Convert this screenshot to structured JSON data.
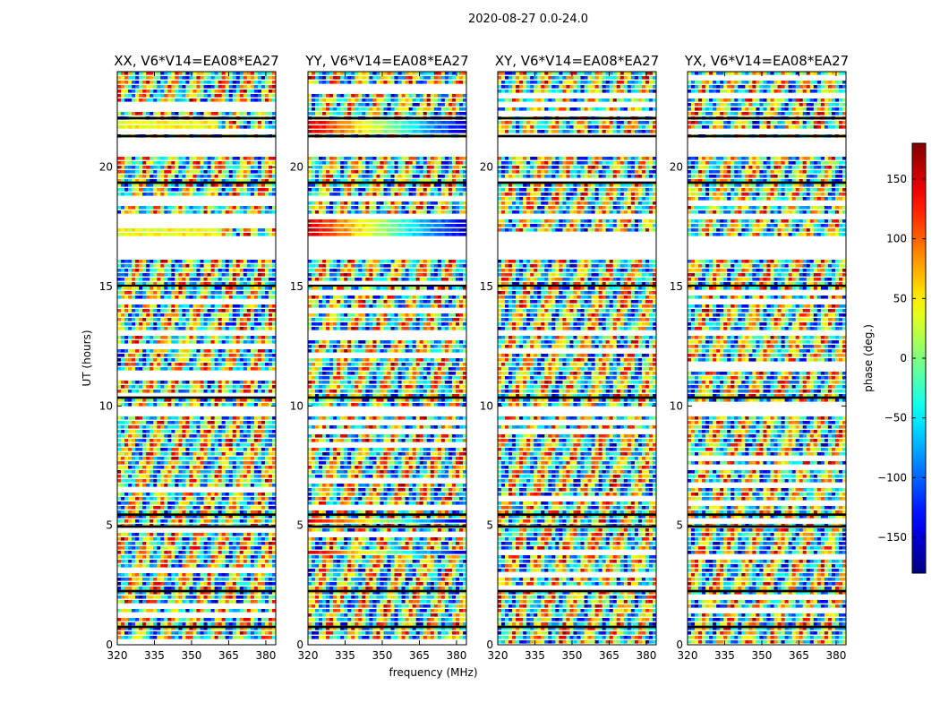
{
  "chart_data": {
    "type": "heatmap",
    "suptitle": "2020-08-27 0.0-24.0",
    "xlabel": "frequency (MHz)",
    "ylabel": "UT (hours)",
    "xlim": [
      320,
      384
    ],
    "ylim": [
      0,
      24
    ],
    "xticks": [
      320,
      335,
      350,
      365,
      380
    ],
    "yticks": [
      0,
      5,
      10,
      15,
      20
    ],
    "panels": [
      {
        "title": "XX, V6*V14=EA08*EA27",
        "pattern": "XX"
      },
      {
        "title": "YY, V6*V14=EA08*EA27",
        "pattern": "YY"
      },
      {
        "title": "XY, V6*V14=EA08*EA27",
        "pattern": "XY"
      },
      {
        "title": "YX, V6*V14=EA08*EA27",
        "pattern": "YX"
      }
    ],
    "colorbar": {
      "label": "phase (deg.)",
      "range": [
        -180,
        180
      ],
      "ticks": [
        -150,
        -100,
        -50,
        0,
        50,
        100,
        150
      ],
      "tick_labels": [
        "−150",
        "−100",
        "−50",
        "0",
        "50",
        "100",
        "150"
      ],
      "colormap": "jet"
    },
    "flagged_hours": [
      [
        16.2,
        17.1
      ],
      [
        9.6,
        9.9
      ],
      [
        20.5,
        21.2
      ],
      [
        4.05,
        4.2
      ],
      [
        17.8,
        18.0
      ],
      [
        12.9,
        13.1
      ]
    ],
    "dark_hours": [
      [
        22.0,
        22.1
      ],
      [
        21.25,
        21.35
      ],
      [
        19.3,
        19.4
      ],
      [
        15.0,
        15.08
      ],
      [
        10.3,
        10.4
      ],
      [
        5.4,
        5.5
      ],
      [
        4.9,
        5.0
      ],
      [
        2.2,
        2.3
      ],
      [
        0.7,
        0.8
      ]
    ]
  }
}
